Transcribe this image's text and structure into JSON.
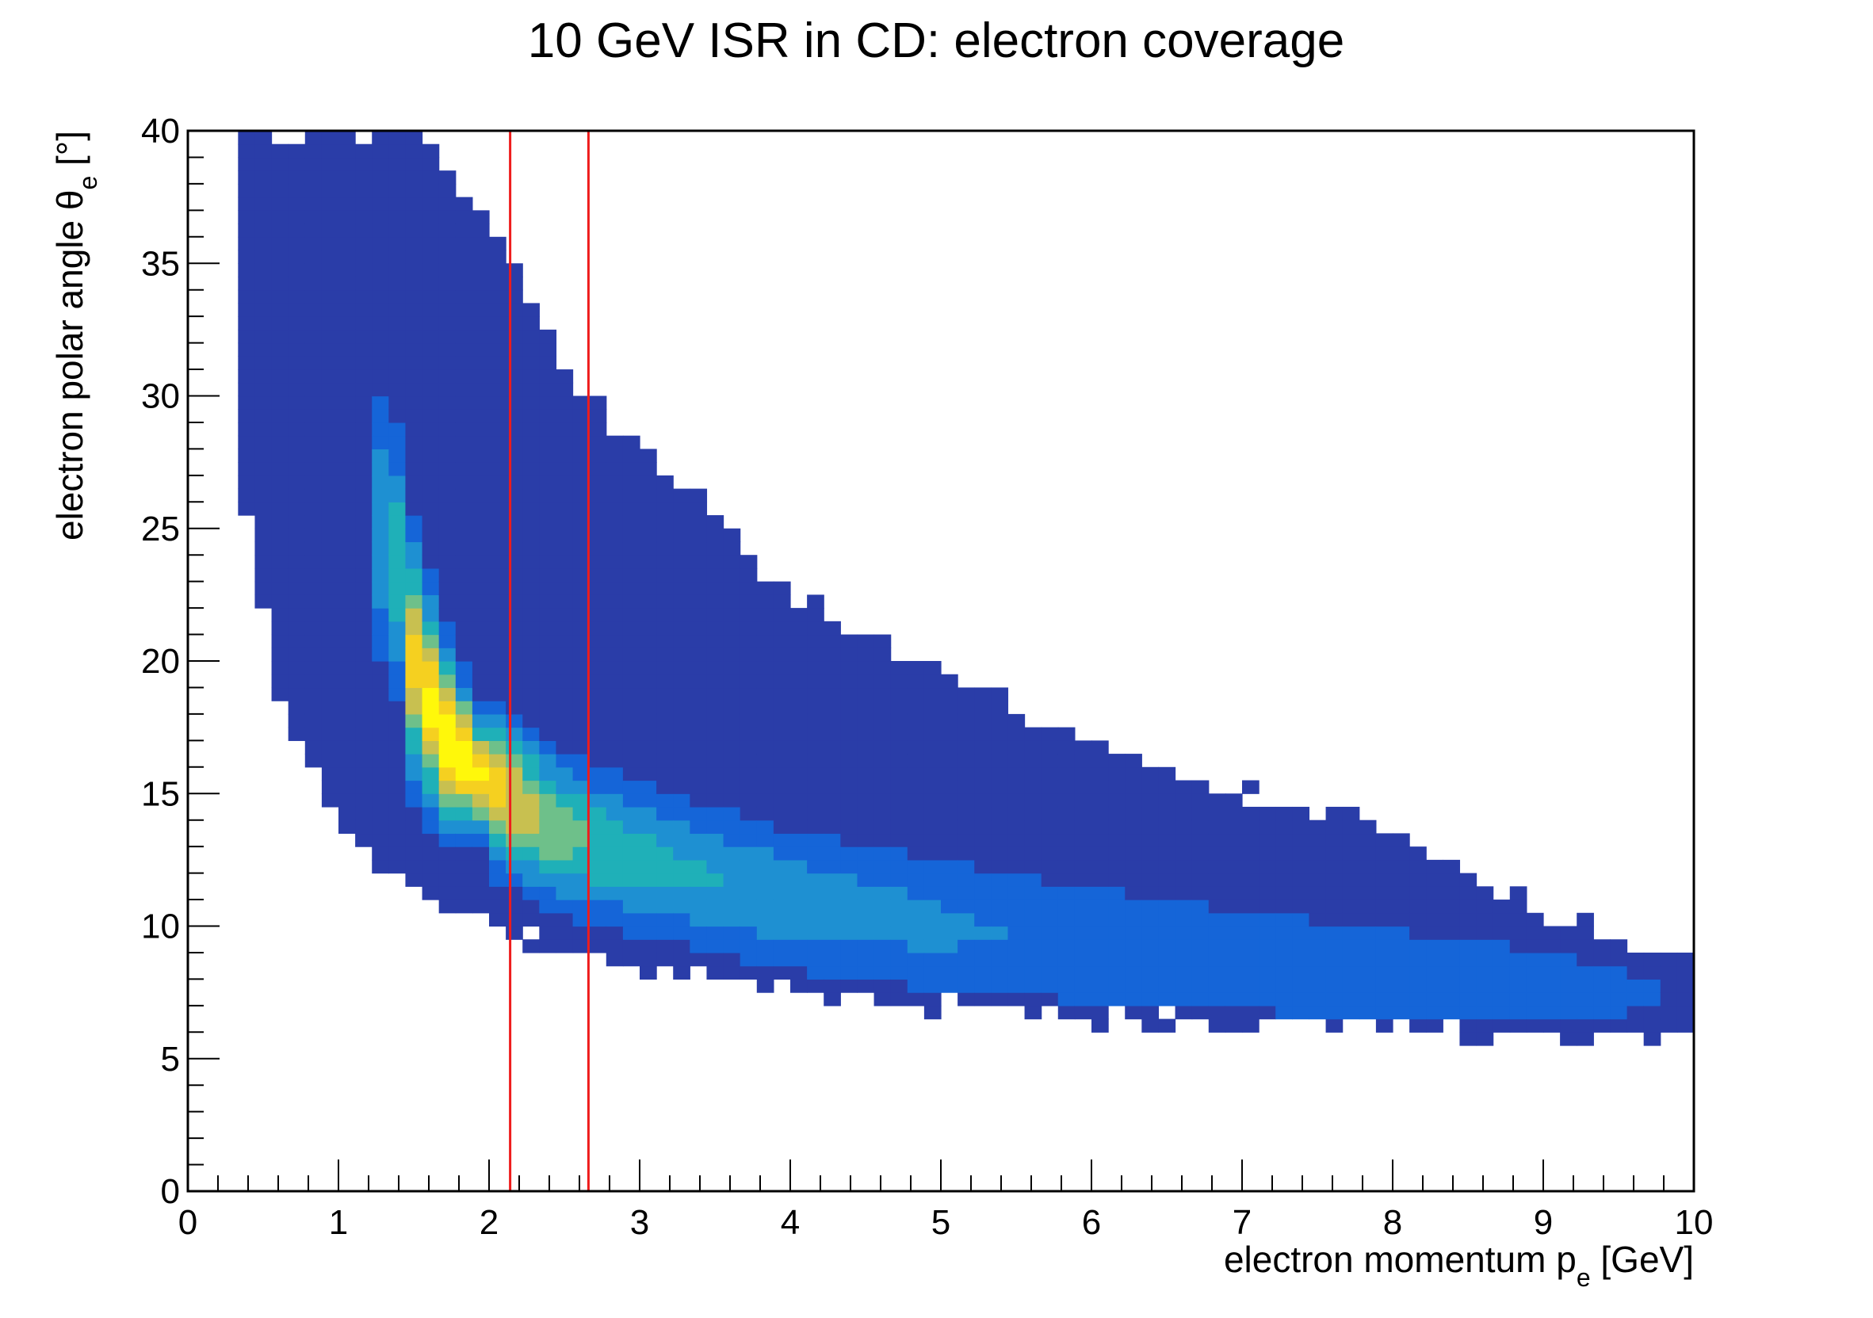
{
  "chart_data": {
    "type": "heatmap",
    "title": "10 GeV ISR in CD: electron coverage",
    "xlabel": {
      "text": "electron momentum p",
      "sub": "e",
      "suffix": " [GeV]"
    },
    "ylabel": {
      "text": "electron polar angle θ",
      "sub": "e",
      "suffix": " [°]"
    },
    "xlim": [
      0,
      10
    ],
    "ylim": [
      0,
      40
    ],
    "x_ticks": [
      "0",
      "1",
      "2",
      "3",
      "4",
      "5",
      "6",
      "7",
      "8",
      "9",
      "10"
    ],
    "y_ticks": [
      "0",
      "5",
      "10",
      "15",
      "20",
      "25",
      "30",
      "35",
      "40"
    ],
    "colormap": [
      "#2a3da8",
      "#1565d8",
      "#1e90d2",
      "#1fb0b8",
      "#6ec08a",
      "#c8c050",
      "#f5d020",
      "#fff80a"
    ],
    "vertical_lines": [
      {
        "x": 2.14,
        "color": "#ee1c1c"
      },
      {
        "x": 2.66,
        "color": "#ee1c1c"
      }
    ],
    "band": {
      "description_points": [
        {
          "x": 0.35,
          "lower": 26.5,
          "upper": 40
        },
        {
          "x": 0.6,
          "lower": 19,
          "upper": 40
        },
        {
          "x": 1.0,
          "lower": 14,
          "upper": 40
        },
        {
          "x": 1.5,
          "lower": 11.5,
          "upper": 40
        },
        {
          "x": 2.0,
          "lower": 10,
          "upper": 36.5
        },
        {
          "x": 2.5,
          "lower": 9.2,
          "upper": 31
        },
        {
          "x": 3.0,
          "lower": 8.6,
          "upper": 28
        },
        {
          "x": 4.0,
          "lower": 7.7,
          "upper": 22.5
        },
        {
          "x": 5.0,
          "lower": 7.0,
          "upper": 19.5
        },
        {
          "x": 6.0,
          "lower": 6.6,
          "upper": 17
        },
        {
          "x": 7.0,
          "lower": 6.3,
          "upper": 15
        },
        {
          "x": 8.0,
          "lower": 6.0,
          "upper": 13.5
        },
        {
          "x": 9.0,
          "lower": 5.9,
          "upper": 10.5
        },
        {
          "x": 10.0,
          "lower": 5.7,
          "upper": 8.6
        }
      ],
      "ridge_points": [
        {
          "x": 1.35,
          "theta": 25,
          "peak": 0.35
        },
        {
          "x": 1.5,
          "theta": 20,
          "peak": 0.8
        },
        {
          "x": 1.7,
          "theta": 17.2,
          "peak": 1.0
        },
        {
          "x": 2.0,
          "theta": 15.3,
          "peak": 0.85
        },
        {
          "x": 2.5,
          "theta": 13.5,
          "peak": 0.55
        },
        {
          "x": 3.0,
          "theta": 12.5,
          "peak": 0.42
        },
        {
          "x": 4.0,
          "theta": 11.0,
          "peak": 0.33
        },
        {
          "x": 5.0,
          "theta": 10.0,
          "peak": 0.27
        },
        {
          "x": 6.0,
          "theta": 9.3,
          "peak": 0.22
        },
        {
          "x": 7.0,
          "theta": 8.7,
          "peak": 0.19
        },
        {
          "x": 8.0,
          "theta": 8.2,
          "peak": 0.17
        },
        {
          "x": 9.0,
          "theta": 7.8,
          "peak": 0.15
        },
        {
          "x": 10.0,
          "theta": 7.3,
          "peak": 0.12
        }
      ]
    }
  }
}
